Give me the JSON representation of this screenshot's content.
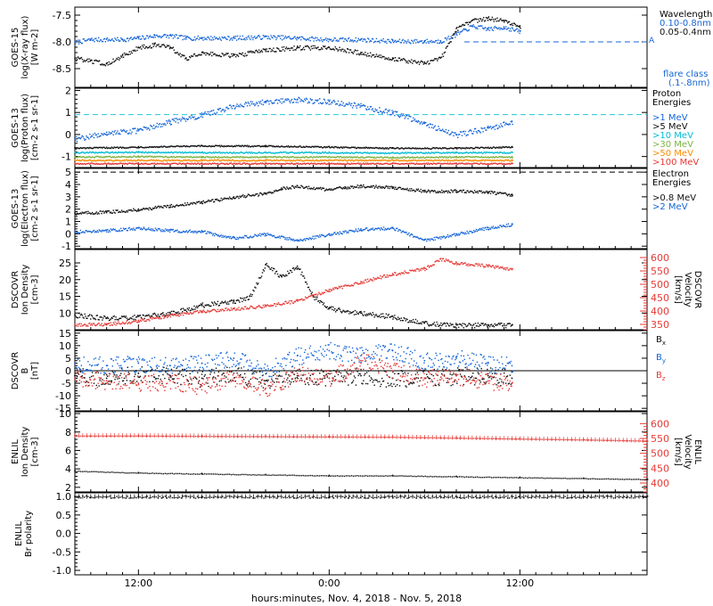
{
  "chart_data": [
    {
      "type": "scatter",
      "panel": "goes-xray",
      "ylabel_lines": [
        "GOES-15",
        "log(X-ray flux)",
        "[W m-2]"
      ],
      "yticks": [
        "-7.5",
        "-8.0",
        "-8.5"
      ],
      "ylim": [
        -8.85,
        -7.35
      ],
      "legend_title": "Wavelength",
      "threshold_label": "A",
      "threshold_value": -8.0,
      "series": [
        {
          "name": "0.10-0.8nm",
          "color": "#1565d8",
          "x": [
            8,
            9,
            10,
            11,
            12,
            13,
            14,
            15,
            16,
            18,
            20,
            22,
            24,
            26,
            28,
            30,
            31,
            32,
            33,
            34,
            35,
            36
          ],
          "y": [
            -8.0,
            -7.95,
            -7.95,
            -7.95,
            -7.92,
            -7.88,
            -7.88,
            -7.92,
            -7.92,
            -7.92,
            -7.9,
            -7.92,
            -7.95,
            -7.95,
            -7.98,
            -7.98,
            -7.98,
            -7.85,
            -7.7,
            -7.75,
            -7.72,
            -7.8
          ]
        },
        {
          "name": "0.05-0.4nm",
          "color": "#111111",
          "x": [
            8,
            9,
            10,
            11,
            12,
            13,
            14,
            15,
            16,
            18,
            20,
            22,
            24,
            26,
            28,
            30,
            31,
            32,
            33,
            34,
            35,
            36
          ],
          "y": [
            -8.3,
            -8.35,
            -8.4,
            -8.25,
            -8.1,
            -8.05,
            -8.1,
            -8.3,
            -8.2,
            -8.25,
            -8.15,
            -8.1,
            -8.1,
            -8.2,
            -8.3,
            -8.4,
            -8.3,
            -7.75,
            -7.6,
            -7.55,
            -7.6,
            -7.7
          ]
        }
      ],
      "footnote": [
        "flare class",
        "(.1-.8nm)"
      ]
    },
    {
      "type": "scatter",
      "panel": "goes-proton",
      "ylabel_lines": [
        "GOES-13",
        "log(Proton flux)",
        "[cm-2 s-1 sr-1]"
      ],
      "yticks": [
        "2",
        "1",
        "0",
        "-1"
      ],
      "ylim": [
        -1.5,
        2.1
      ],
      "legend_title": [
        "Proton",
        "Energies"
      ],
      "threshold_value": 0.9,
      "series": [
        {
          "name": ">1 MeV",
          "color": "#1565d8",
          "x": [
            8,
            10,
            12,
            14,
            16,
            18,
            20,
            22,
            24,
            26,
            28,
            30,
            32,
            34,
            35.5
          ],
          "y": [
            -0.2,
            0.1,
            0.2,
            0.6,
            0.9,
            1.3,
            1.5,
            1.6,
            1.5,
            1.3,
            1.0,
            0.5,
            0.0,
            0.3,
            0.6
          ]
        },
        {
          "name": ">5 MeV",
          "color": "#111111",
          "x": [
            8,
            12,
            16,
            20,
            24,
            28,
            32,
            35.5
          ],
          "y": [
            -0.6,
            -0.55,
            -0.5,
            -0.5,
            -0.55,
            -0.6,
            -0.6,
            -0.55
          ]
        },
        {
          "name": ">10 MeV",
          "color": "#00bcd4",
          "x": [
            8,
            12,
            16,
            20,
            24,
            28,
            32,
            35.5
          ],
          "y": [
            -0.8,
            -0.78,
            -0.8,
            -0.8,
            -0.8,
            -0.82,
            -0.8,
            -0.8
          ]
        },
        {
          "name": ">30 MeV",
          "color": "#7cb342",
          "x": [
            8,
            12,
            16,
            20,
            24,
            28,
            32,
            35.5
          ],
          "y": [
            -1.0,
            -0.98,
            -1.0,
            -1.0,
            -1.0,
            -1.02,
            -1.0,
            -1.0
          ]
        },
        {
          "name": ">50 MeV",
          "color": "#fb8c00",
          "x": [
            8,
            12,
            16,
            20,
            24,
            28,
            32,
            35.5
          ],
          "y": [
            -1.15,
            -1.15,
            -1.15,
            -1.15,
            -1.15,
            -1.15,
            -1.15,
            -1.15
          ]
        },
        {
          "name": ">100 MeV",
          "color": "#e53935",
          "x": [
            8,
            12,
            16,
            20,
            24,
            28,
            32,
            35.5
          ],
          "y": [
            -1.3,
            -1.3,
            -1.3,
            -1.3,
            -1.3,
            -1.3,
            -1.3,
            -1.3
          ]
        }
      ]
    },
    {
      "type": "scatter",
      "panel": "goes-electron",
      "ylabel_lines": [
        "GOES-13",
        "log(Electron flux)",
        "[cm-2 s-1 sr-1]"
      ],
      "yticks": [
        "5",
        "4",
        "3",
        "2",
        "1",
        "0",
        "-1"
      ],
      "ylim": [
        -1.2,
        5.3
      ],
      "legend_title": [
        "Electron",
        "Energies"
      ],
      "threshold_value": 5.0,
      "series": [
        {
          "name": ">0.8 MeV",
          "color": "#111111",
          "x": [
            8,
            10,
            12,
            14,
            16,
            18,
            20,
            21,
            22,
            24,
            25,
            26,
            28,
            30,
            32,
            34,
            35.5
          ],
          "y": [
            1.7,
            1.8,
            2.0,
            2.3,
            2.6,
            3.0,
            3.3,
            3.7,
            3.9,
            3.6,
            3.8,
            3.9,
            3.8,
            3.5,
            3.5,
            3.4,
            3.2
          ]
        },
        {
          "name": ">2 MeV",
          "color": "#1565d8",
          "x": [
            8,
            10,
            12,
            14,
            16,
            18,
            20,
            22,
            24,
            26,
            28,
            30,
            32,
            34,
            35.5
          ],
          "y": [
            0.2,
            0.3,
            0.5,
            0.3,
            0.2,
            -0.3,
            0.0,
            -0.5,
            0.0,
            0.4,
            0.5,
            -0.5,
            0.0,
            0.5,
            0.8
          ]
        }
      ]
    },
    {
      "type": "scatter",
      "panel": "dscovr-density",
      "ylabel_lines": [
        "DSCOVR",
        "Ion Density",
        "[cm-3]"
      ],
      "yticks": [
        "25",
        "20",
        "15",
        "10"
      ],
      "ylim": [
        5,
        29
      ],
      "right_ylabel_lines": [
        "DSCOVR",
        "Velocity",
        "[km/s]"
      ],
      "right_yticks": [
        "600",
        "550",
        "500",
        "450",
        "400",
        "350"
      ],
      "right_ylim": [
        330,
        630
      ],
      "series": [
        {
          "name": "Density",
          "color": "#111111",
          "axis": "left",
          "x": [
            8,
            10,
            12,
            14,
            16,
            18,
            19,
            20,
            21,
            22,
            23,
            24,
            26,
            28,
            30,
            32,
            34,
            35.5
          ],
          "y": [
            9.5,
            8.5,
            9.0,
            10.0,
            12.5,
            13.5,
            15.0,
            24.5,
            21.0,
            24.0,
            15.0,
            11.5,
            10.0,
            9.0,
            7.0,
            6.5,
            6.5,
            6.5
          ]
        },
        {
          "name": "Velocity",
          "color": "#e53935",
          "axis": "right",
          "x": [
            8,
            10,
            12,
            14,
            16,
            18,
            20,
            22,
            24,
            26,
            28,
            30,
            31,
            32,
            34,
            35.5
          ],
          "y": [
            350,
            352,
            365,
            385,
            400,
            410,
            420,
            440,
            480,
            510,
            540,
            560,
            595,
            580,
            570,
            555
          ]
        }
      ]
    },
    {
      "type": "scatter",
      "panel": "dscovr-bfield",
      "ylabel_lines": [
        "DSCOVR",
        "B",
        "[nT]"
      ],
      "yticks": [
        "15",
        "10",
        "5",
        "0",
        "-5",
        "-10",
        "-15"
      ],
      "ylim": [
        -16,
        16
      ],
      "series": [
        {
          "name": "Bx",
          "color": "#111111",
          "x": [
            8,
            10,
            12,
            14,
            16,
            18,
            20,
            22,
            24,
            26,
            28,
            30,
            32,
            34,
            35.5
          ],
          "y": [
            -2,
            -3,
            -1,
            -2,
            -3,
            -1,
            -4,
            -2,
            -3,
            -2,
            -3,
            -3,
            -2,
            -2,
            -3
          ]
        },
        {
          "name": "By",
          "color": "#1565d8",
          "x": [
            8,
            10,
            12,
            14,
            16,
            18,
            20,
            22,
            24,
            26,
            28,
            30,
            32,
            34,
            35.5
          ],
          "y": [
            3,
            2,
            3,
            2,
            3,
            5,
            0,
            6,
            8,
            6,
            8,
            4,
            5,
            3,
            2
          ]
        },
        {
          "name": "Bz",
          "color": "#e53935",
          "x": [
            8,
            10,
            12,
            14,
            16,
            18,
            20,
            22,
            24,
            26,
            28,
            30,
            32,
            34,
            35.5
          ],
          "y": [
            -3,
            -4,
            -5,
            -4,
            -6,
            -3,
            -7,
            -1,
            -3,
            4,
            0,
            -3,
            -2,
            -4,
            -5
          ]
        }
      ]
    },
    {
      "type": "scatter",
      "panel": "enlil-density",
      "ylabel_lines": [
        "ENLIL",
        "Ion Density",
        "[cm-3]"
      ],
      "yticks": [
        "10",
        "8",
        "6",
        "4",
        "2"
      ],
      "ylim": [
        1.5,
        10.2
      ],
      "right_ylabel_lines": [
        "ENLIL",
        "Velocity",
        "[km/s]"
      ],
      "right_yticks": [
        "600",
        "550",
        "500",
        "450",
        "400"
      ],
      "right_ylim": [
        370,
        640
      ],
      "series": [
        {
          "name": "Density",
          "color": "#111111",
          "axis": "left",
          "x": [
            8,
            12,
            16,
            20,
            24,
            28,
            32,
            36,
            40,
            44
          ],
          "y": [
            3.8,
            3.6,
            3.5,
            3.4,
            3.3,
            3.3,
            3.2,
            3.1,
            3.0,
            2.9
          ]
        },
        {
          "name": "Velocity",
          "color": "#e53935",
          "axis": "right",
          "x": [
            8,
            12,
            16,
            20,
            24,
            28,
            32,
            36,
            40,
            44
          ],
          "y": [
            560,
            560,
            559,
            558,
            557,
            556,
            553,
            550,
            547,
            543
          ]
        }
      ]
    },
    {
      "type": "scatter",
      "panel": "enlil-polarity",
      "ylabel_lines": [
        "ENLIL",
        "Br polarity"
      ],
      "yticks": [
        "1.0",
        "0.5",
        "0.0",
        "-0.5",
        "-1.0"
      ],
      "ylim": [
        -1.12,
        1.1
      ],
      "series": [
        {
          "name": "Br polarity",
          "color": "#111111",
          "x": [
            8,
            12,
            16,
            20,
            24,
            28,
            32,
            36,
            40,
            44
          ],
          "y": [
            1,
            1,
            1,
            1,
            1,
            1,
            1,
            1,
            1,
            1
          ]
        }
      ]
    }
  ],
  "x_axis": {
    "start_hour": 8,
    "end_hour": 44,
    "tick_labels": [
      "12:00",
      "0:00",
      "12:00"
    ],
    "label": "hours:minutes, Nov.  4, 2018 - Nov.  5, 2018"
  }
}
